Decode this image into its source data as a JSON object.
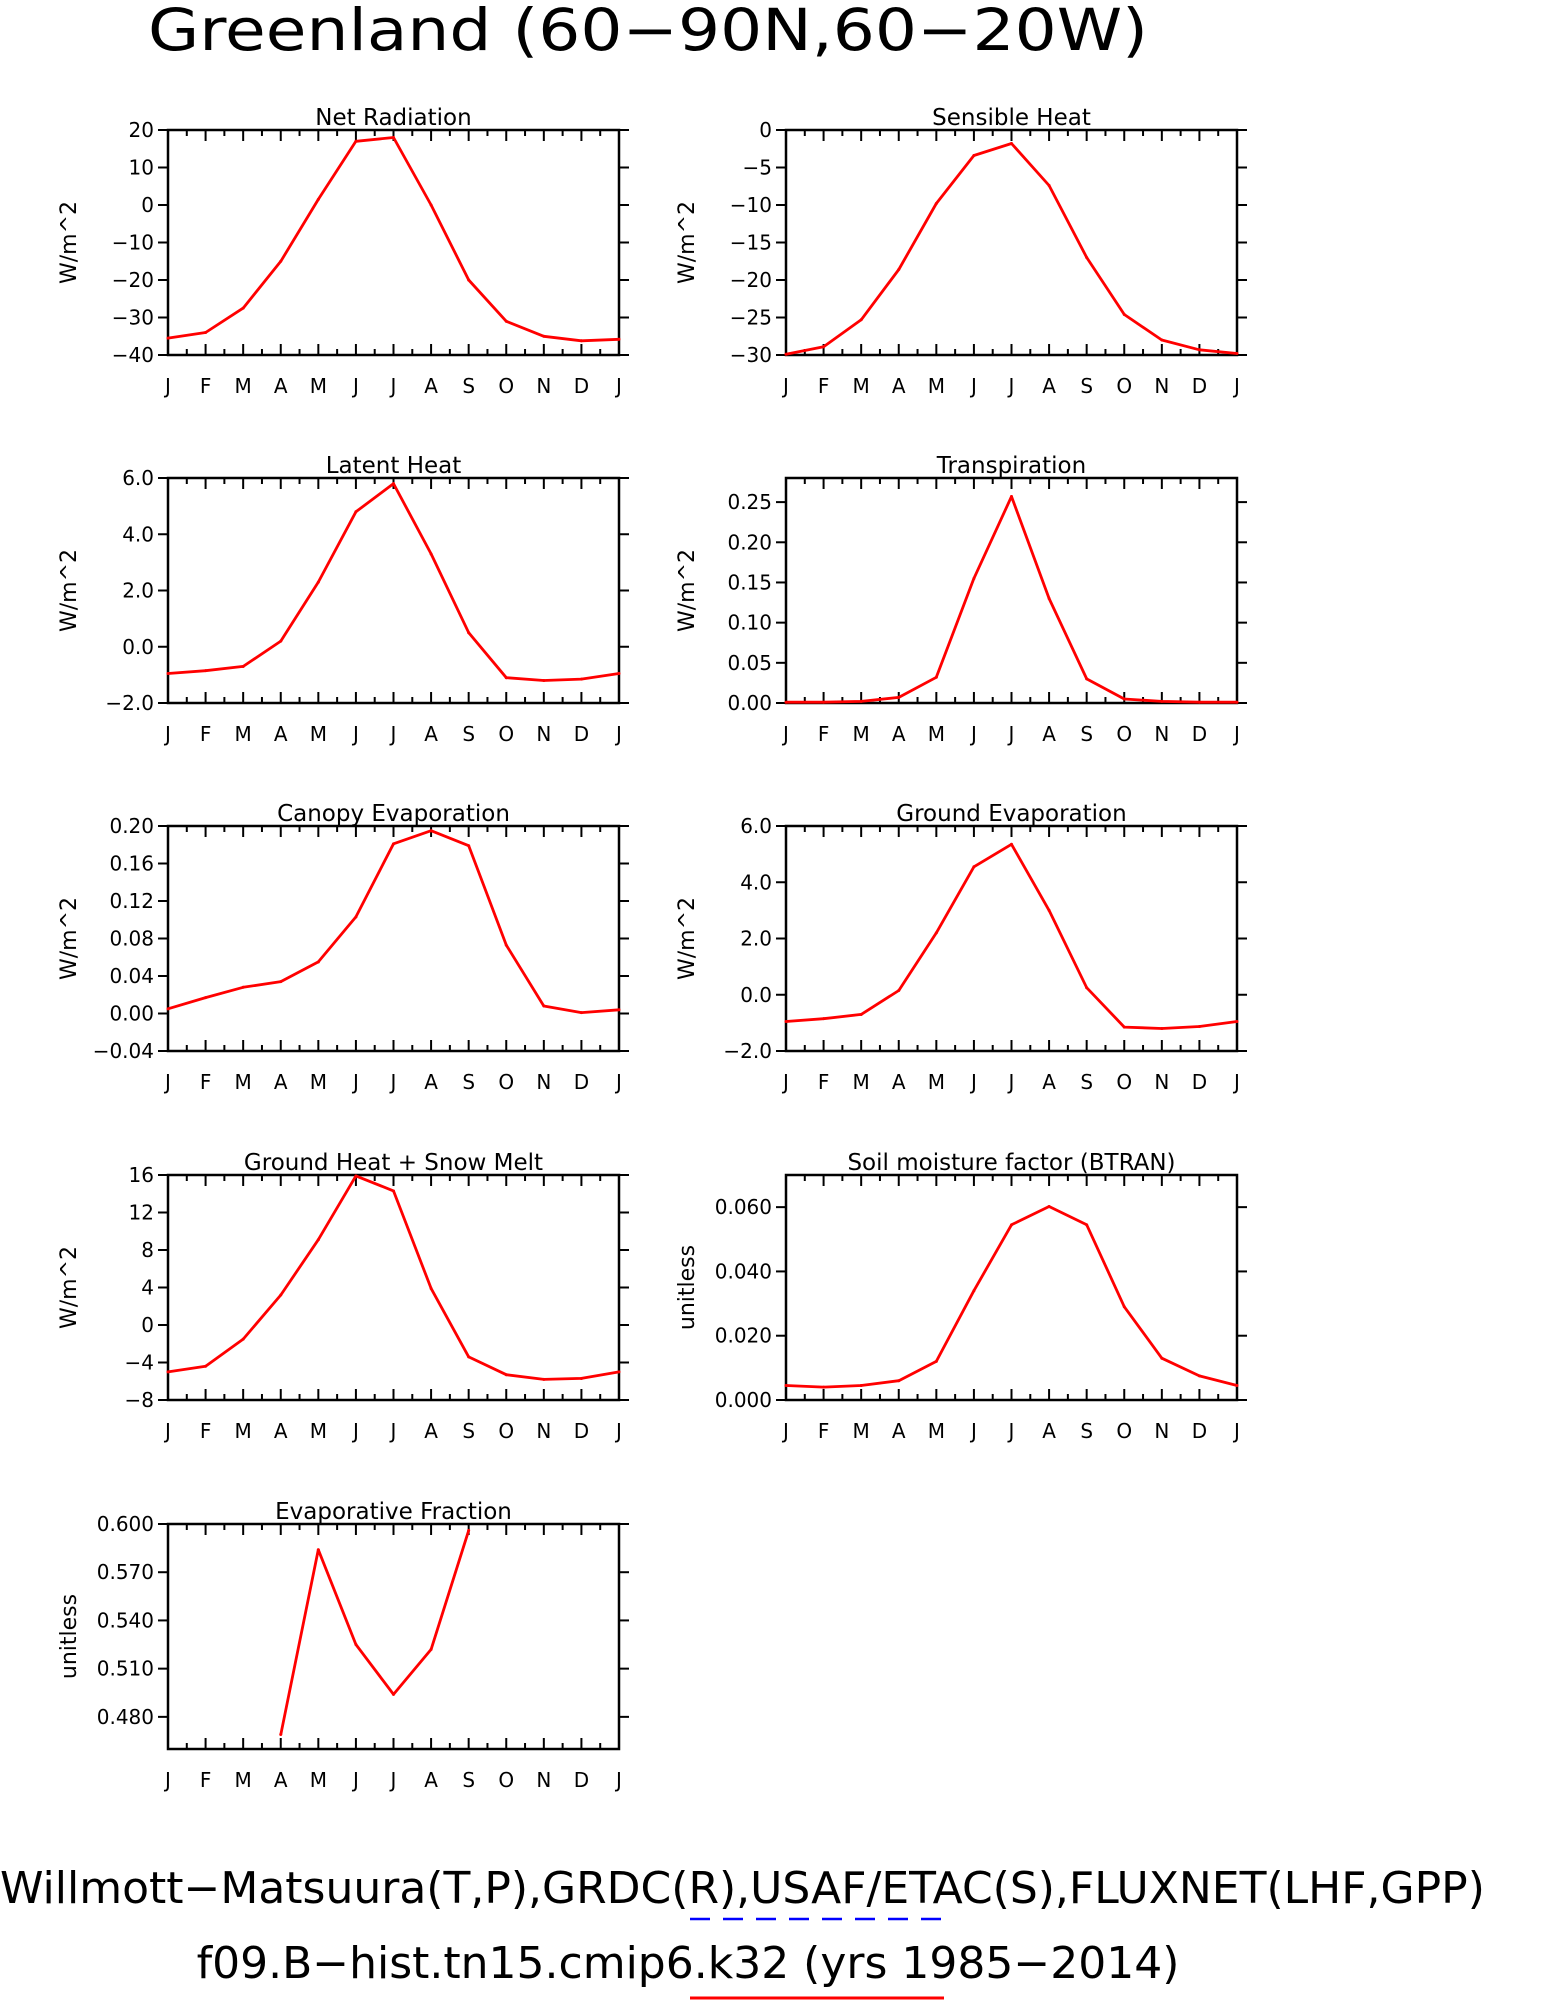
{
  "title": "Greenland (60-90N,60-20W)",
  "footer": {
    "line1": "Willmott-Matsuura(T,P),GRDC(R),USAF/ETAC(S),FLUXNET(LHF,GPP)",
    "line2": "f09.B-hist.tn15.cmip6.k32 (yrs 1985-2014)"
  },
  "colors": {
    "model": "#ff0000",
    "obs_legend": "#0000ff",
    "frame": "#000000"
  },
  "months": [
    "J",
    "F",
    "M",
    "A",
    "M",
    "J",
    "J",
    "A",
    "S",
    "O",
    "N",
    "D",
    "J"
  ],
  "chart_data": [
    {
      "type": "line",
      "title": "Net Radiation",
      "ylabel": "W/m^2",
      "ylim": [
        -40,
        20
      ],
      "yticks": [
        20,
        10,
        0,
        -10,
        -20,
        -30,
        -40
      ],
      "yticklabels": [
        "20",
        "10",
        "0",
        "−10",
        "−20",
        "−30",
        "−40"
      ],
      "values": [
        -35.5,
        -34,
        -27.5,
        -15,
        1.5,
        17,
        18,
        0,
        -20,
        -31,
        -35,
        -36.2,
        -35.8
      ]
    },
    {
      "type": "line",
      "title": "Sensible Heat",
      "ylabel": "W/m^2",
      "ylim": [
        -30,
        0
      ],
      "yticks": [
        0,
        -5,
        -10,
        -15,
        -20,
        -25,
        -30
      ],
      "yticklabels": [
        "0",
        "−5",
        "−10",
        "−15",
        "−20",
        "−25",
        "−30"
      ],
      "values": [
        -29.9,
        -28.9,
        -25.3,
        -18.6,
        -9.8,
        -3.4,
        -1.8,
        -7.4,
        -17,
        -24.6,
        -28,
        -29.3,
        -29.8
      ]
    },
    {
      "type": "line",
      "title": "Latent Heat",
      "ylabel": "W/m^2",
      "ylim": [
        -2,
        6
      ],
      "yticks": [
        6,
        4,
        2,
        0,
        -2
      ],
      "yticklabels": [
        "6.0",
        "4.0",
        "2.0",
        "0.0",
        "−2.0"
      ],
      "values": [
        -0.95,
        -0.85,
        -0.7,
        0.2,
        2.3,
        4.8,
        5.8,
        3.3,
        0.5,
        -1.1,
        -1.2,
        -1.15,
        -0.95
      ]
    },
    {
      "type": "line",
      "title": "Transpiration",
      "ylabel": "W/m^2",
      "ylim": [
        0,
        0.28
      ],
      "yticks": [
        0.25,
        0.2,
        0.15,
        0.1,
        0.05,
        0
      ],
      "yticklabels": [
        "0.25",
        "0.20",
        "0.15",
        "0.10",
        "0.05",
        "0.00"
      ],
      "values": [
        0.001,
        0.001,
        0.002,
        0.007,
        0.032,
        0.155,
        0.257,
        0.13,
        0.03,
        0.005,
        0.002,
        0.001,
        0.001
      ]
    },
    {
      "type": "line",
      "title": "Canopy Evaporation",
      "ylabel": "W/m^2",
      "ylim": [
        -0.04,
        0.2
      ],
      "yticks": [
        0.2,
        0.16,
        0.12,
        0.08,
        0.04,
        0,
        -0.04
      ],
      "yticklabels": [
        "0.20",
        "0.16",
        "0.12",
        "0.08",
        "0.04",
        "0.00",
        "−0.04"
      ],
      "values": [
        0.005,
        0.017,
        0.028,
        0.034,
        0.055,
        0.103,
        0.181,
        0.195,
        0.179,
        0.073,
        0.008,
        0.001,
        0.004
      ]
    },
    {
      "type": "line",
      "title": "Ground Evaporation",
      "ylabel": "W/m^2",
      "ylim": [
        -2,
        6
      ],
      "yticks": [
        6,
        4,
        2,
        0,
        -2
      ],
      "yticklabels": [
        "6.0",
        "4.0",
        "2.0",
        "0.0",
        "−2.0"
      ],
      "values": [
        -0.95,
        -0.85,
        -0.7,
        0.15,
        2.2,
        4.55,
        5.35,
        3.0,
        0.25,
        -1.15,
        -1.2,
        -1.13,
        -0.95
      ]
    },
    {
      "type": "line",
      "title": "Ground Heat + Snow Melt",
      "ylabel": "W/m^2",
      "ylim": [
        -8,
        16
      ],
      "yticks": [
        16,
        12,
        8,
        4,
        0,
        -4,
        -8
      ],
      "yticklabels": [
        "16",
        "12",
        "8",
        "4",
        "0",
        "−4",
        "−8"
      ],
      "values": [
        -5,
        -4.4,
        -1.5,
        3.2,
        9.1,
        15.9,
        14.3,
        3.9,
        -3.4,
        -5.3,
        -5.8,
        -5.7,
        -5
      ]
    },
    {
      "type": "line",
      "title": "Soil moisture factor (BTRAN)",
      "ylabel": "unitless",
      "ylim": [
        0,
        0.07
      ],
      "yticks": [
        0.06,
        0.04,
        0.02,
        0
      ],
      "yticklabels": [
        "0.060",
        "0.040",
        "0.020",
        "0.000"
      ],
      "values": [
        0.0045,
        0.004,
        0.0045,
        0.006,
        0.012,
        0.034,
        0.0545,
        0.0602,
        0.0545,
        0.029,
        0.013,
        0.0075,
        0.0045
      ]
    },
    {
      "type": "line",
      "title": "Evaporative Fraction",
      "ylabel": "unitless",
      "ylim": [
        0.46,
        0.6
      ],
      "yticks": [
        0.6,
        0.57,
        0.54,
        0.51,
        0.48
      ],
      "yticklabels": [
        "0.600",
        "0.570",
        "0.540",
        "0.510",
        "0.480"
      ],
      "values": [
        null,
        null,
        null,
        0.469,
        0.584,
        0.525,
        0.494,
        0.522,
        0.596,
        null,
        null,
        null,
        null
      ]
    }
  ]
}
